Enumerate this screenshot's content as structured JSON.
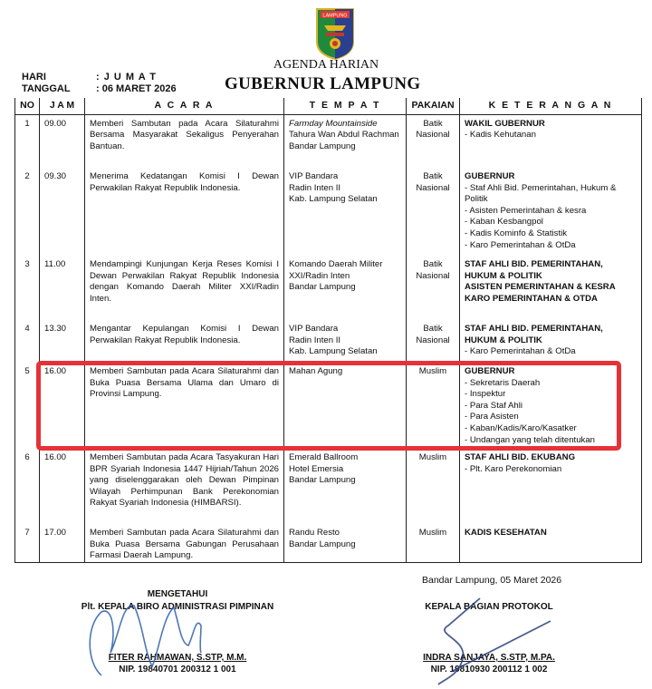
{
  "header": {
    "logo_text": "LAMPUNG",
    "subtitle": "AGENDA HARIAN",
    "title": "GUBERNUR LAMPUNG",
    "hari_label": "HARI",
    "hari_value": ": J U M A T",
    "tanggal_label": "TANGGAL",
    "tanggal_value": ": 06 MARET 2026"
  },
  "columns": [
    "NO",
    "J A M",
    "A C A R A",
    "T E M P A T",
    "PAKAIAN",
    "K E T E R A N G A N"
  ],
  "rows": [
    {
      "no": "1",
      "jam": "09.00",
      "acara": "Memberi Sambutan pada Acara Silaturahmi Bersama Masyarakat Sekaligus Penyerahan Bantuan.",
      "tempat": [
        "Farmday Mountainside",
        "Tahura Wan Abdul Rachman",
        "Bandar Lampung"
      ],
      "pakaian": "Batik Nasional",
      "keterangan_head": [
        "WAKIL GUBERNUR"
      ],
      "keterangan": [
        "- Kadis Kehutanan"
      ]
    },
    {
      "no": "2",
      "jam": "09.30",
      "acara": "Menerima Kedatangan Komisi I Dewan Perwakilan Rakyat Republik Indonesia.",
      "tempat": [
        "VIP Bandara",
        "Radin Inten II",
        "Kab. Lampung Selatan"
      ],
      "pakaian": "Batik Nasional",
      "keterangan_head": [
        "GUBERNUR"
      ],
      "keterangan": [
        "- Staf Ahli Bid. Pemerintahan, Hukum & Politik",
        "- Asisten Pemerintahan & kesra",
        "- Kaban Kesbangpol",
        "- Kadis Kominfo & Statistik",
        "- Karo Pemerintahan & OtDa"
      ]
    },
    {
      "no": "3",
      "jam": "11.00",
      "acara": "Mendampingi Kunjungan Kerja Reses Komisi I Dewan Perwakilan Rakyat Republik Indonesia dengan Komando Daerah Militer XXI/Radin Inten.",
      "tempat": [
        "Komando Daerah Militer XXI/Radin Inten",
        "Bandar Lampung"
      ],
      "pakaian": "Batik Nasional",
      "keterangan_head": [
        "STAF AHLI BID. PEMERINTAHAN, HUKUM & POLITIK",
        "ASISTEN PEMERINTAHAN & KESRA",
        "KARO PEMERINTAHAN & OTDA"
      ],
      "keterangan": []
    },
    {
      "no": "4",
      "jam": "13.30",
      "acara": "Mengantar Kepulangan Komisi I Dewan Perwakilan Rakyat Republik Indonesia.",
      "tempat": [
        "VIP Bandara",
        "Radin Inten II",
        "Kab. Lampung Selatan"
      ],
      "pakaian": "Batik Nasional",
      "keterangan_head": [
        "STAF AHLI BID. PEMERINTAHAN, HUKUM & POLITIK"
      ],
      "keterangan": [
        "- Karo Pemerintahan & OtDa"
      ]
    },
    {
      "no": "5",
      "jam": "16.00",
      "acara": "Memberi Sambutan pada Acara Silaturahmi dan Buka Puasa Bersama Ulama dan Umaro di Provinsi Lampung.",
      "tempat": [
        "Mahan Agung"
      ],
      "pakaian": "Muslim",
      "keterangan_head": [
        "GUBERNUR"
      ],
      "keterangan": [
        "- Sekretaris Daerah",
        "- Inspektur",
        "- Para Staf Ahli",
        "- Para Asisten",
        "- Kaban/Kadis/Karo/Kasatker",
        "- Undangan yang telah ditentukan"
      ]
    },
    {
      "no": "6",
      "jam": "16.00",
      "acara": "Memberi Sambutan pada Acara Tasyakuran Hari BPR Syariah Indonesia 1447 Hijriah/Tahun 2026 yang diselenggarakan oleh Dewan Pimpinan Wilayah Perhimpunan Bank Perekonomian Rakyat Syariah Indonesia (HIMBARSI).",
      "tempat": [
        "Emerald Ballroom",
        "Hotel Emersia",
        "Bandar Lampung"
      ],
      "pakaian": "Muslim",
      "keterangan_head": [
        "STAF AHLI BID. EKUBANG"
      ],
      "keterangan": [
        "- Plt. Karo Perekonomian"
      ]
    },
    {
      "no": "7",
      "jam": "17.00",
      "acara": "Memberi Sambutan pada Acara Silaturahmi dan Buka Puasa Bersama Gabungan Perusahaan Farmasi Daerah Lampung.",
      "tempat": [
        "Randu Resto",
        "Bandar Lampung"
      ],
      "pakaian": "Muslim",
      "keterangan_head": [
        "KADIS KESEHATAN"
      ],
      "keterangan": []
    }
  ],
  "highlight_color": "#e53238",
  "footer": {
    "place_date": "Bandar Lampung, 05 Maret 2026",
    "left": {
      "line1": "MENGETAHUI",
      "line2": "Plt. KEPALA BIRO ADMINISTRASI PIMPINAN",
      "name": "FITER RAHMAWAN, S.STP, M.M.",
      "nip": "NIP. 19840701 200312 1 001"
    },
    "right": {
      "line1": "KEPALA BAGIAN PROTOKOL",
      "name": "INDRA SANJAYA, S.STP, M.PA.",
      "nip": "NIP. 19810930 200112 1 002"
    }
  }
}
